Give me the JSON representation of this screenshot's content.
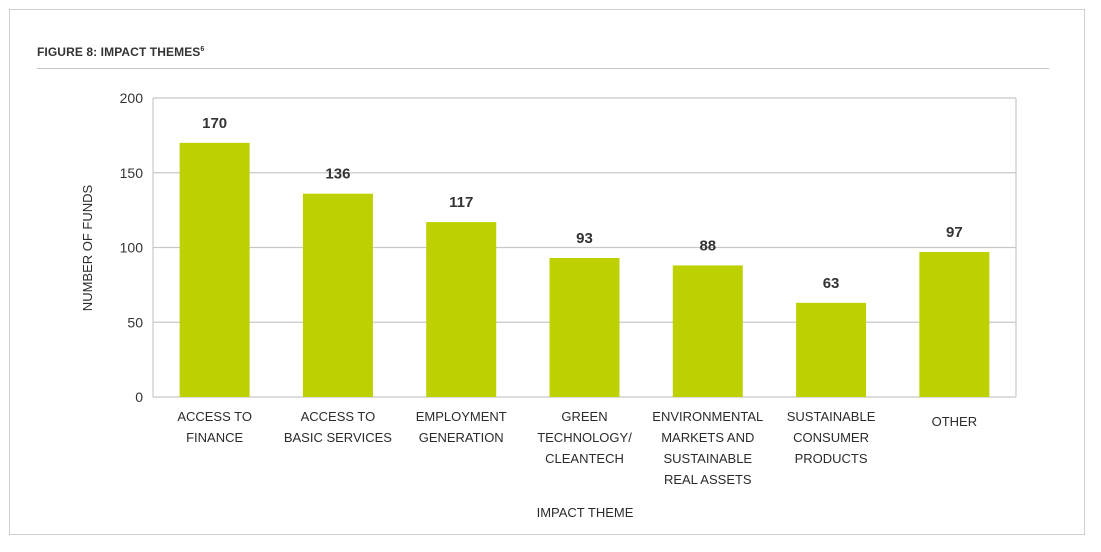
{
  "figure": {
    "title": "FIGURE 8: IMPACT THEMES",
    "title_superscript": "6"
  },
  "colors": {
    "bar": "#bdd000",
    "grid": "#c8c8c8",
    "text": "#333333"
  },
  "chart_data": {
    "type": "bar",
    "categories": [
      [
        "ACCESS TO",
        "FINANCE"
      ],
      [
        "ACCESS TO",
        "BASIC SERVICES"
      ],
      [
        "EMPLOYMENT",
        "GENERATION"
      ],
      [
        "GREEN",
        "TECHNOLOGY/",
        "CLEANTECH"
      ],
      [
        "ENVIRONMENTAL",
        "MARKETS AND",
        "SUSTAINABLE",
        "REAL ASSETS"
      ],
      [
        "SUSTAINABLE",
        "CONSUMER",
        "PRODUCTS"
      ],
      [
        "OTHER"
      ]
    ],
    "values": [
      170,
      136,
      117,
      93,
      88,
      63,
      97
    ],
    "value_labels": [
      "170",
      "136",
      "117",
      "93",
      "88",
      "63",
      "97"
    ],
    "xlabel": "IMPACT THEME",
    "ylabel": "NUMBER OF FUNDS",
    "ylim": [
      0,
      200
    ],
    "yticks": [
      0,
      50,
      100,
      150,
      200
    ],
    "grid": true
  }
}
